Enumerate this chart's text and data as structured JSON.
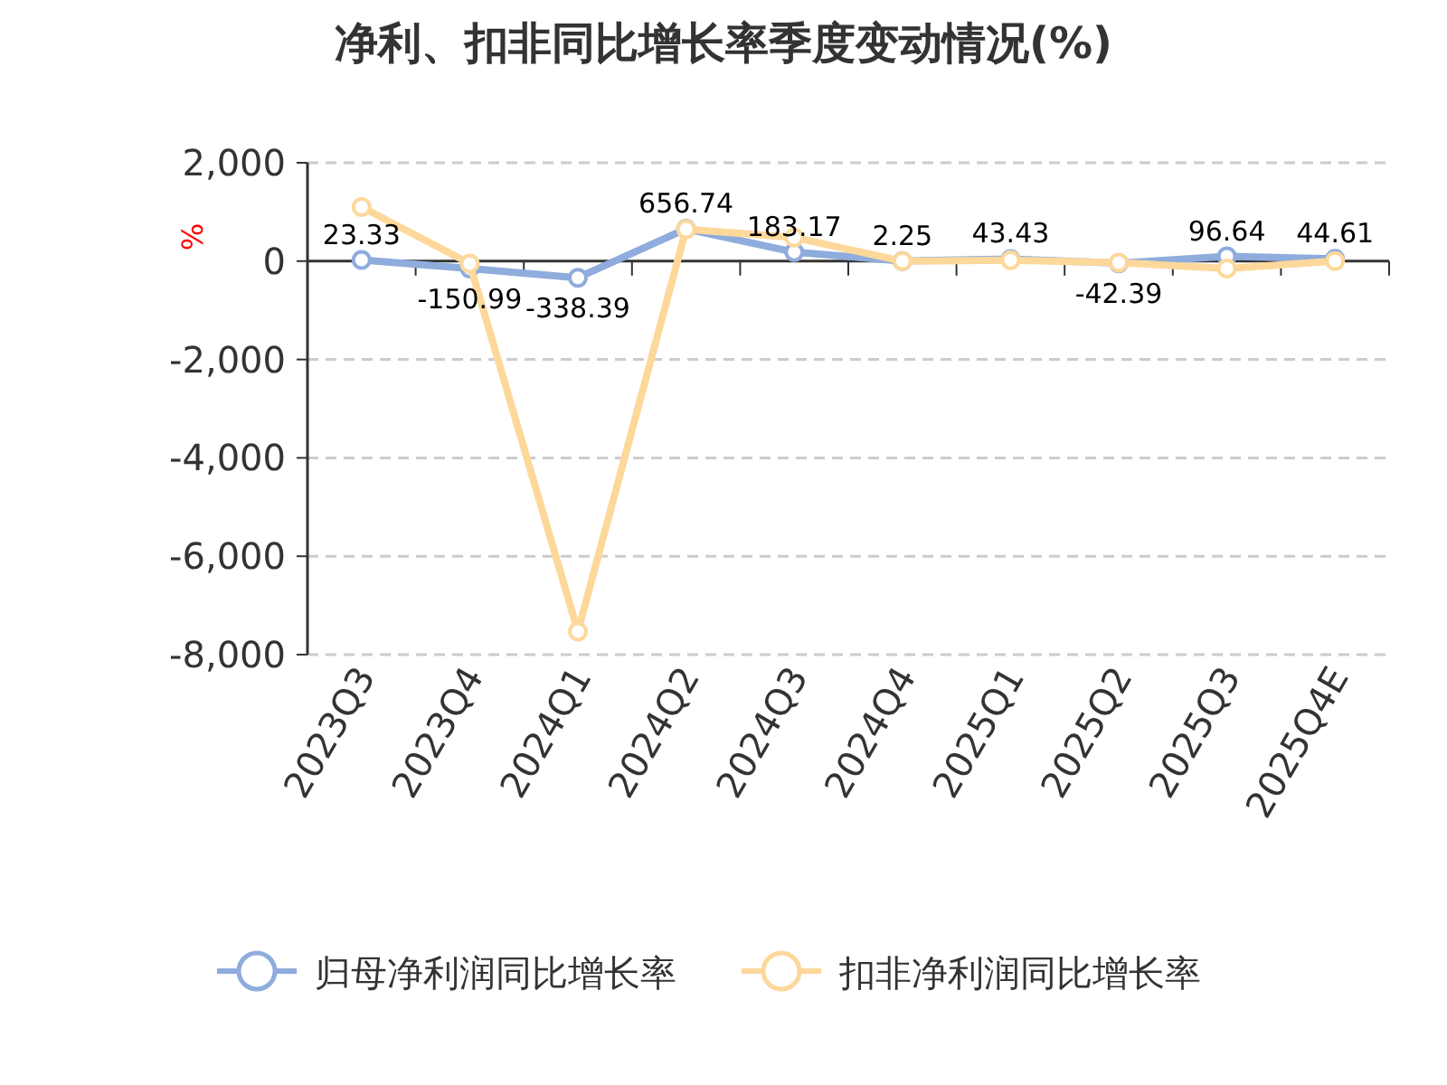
{
  "chart_data": {
    "type": "line",
    "title": "净利、扣非同比增长率季度变动情况(%)",
    "ylabel": "%",
    "categories": [
      "2023Q3",
      "2023Q4",
      "2024Q1",
      "2024Q2",
      "2024Q3",
      "2024Q4",
      "2025Q1",
      "2025Q2",
      "2025Q3",
      "2025Q4E"
    ],
    "series": [
      {
        "name": "归母净利润同比增长率",
        "color": "#8eacdc",
        "values": [
          23.33,
          -150.99,
          -338.39,
          656.74,
          183.17,
          2.25,
          43.43,
          -42.39,
          96.64,
          44.61
        ],
        "value_labels": [
          "23.33",
          "-150.99",
          "-338.39",
          "656.74",
          "183.17",
          "2.25",
          "43.43",
          "-42.39",
          "96.64",
          "44.61"
        ]
      },
      {
        "name": "扣非净利润同比增长率",
        "color": "#fdd89b",
        "values": [
          1100,
          -50,
          -7530,
          650,
          480,
          0,
          20,
          -30,
          -150,
          0
        ]
      }
    ],
    "ylim": [
      -8000,
      2000
    ],
    "yticks": [
      {
        "value": -8000,
        "label": "-8,000"
      },
      {
        "value": -6000,
        "label": "-6,000"
      },
      {
        "value": -4000,
        "label": "-4,000"
      },
      {
        "value": -2000,
        "label": "-2,000"
      },
      0,
      {
        "value": 2000,
        "label": "2,000"
      }
    ],
    "grid": "y",
    "legend": "bottom",
    "marker": "circle",
    "line_style": "solid"
  }
}
